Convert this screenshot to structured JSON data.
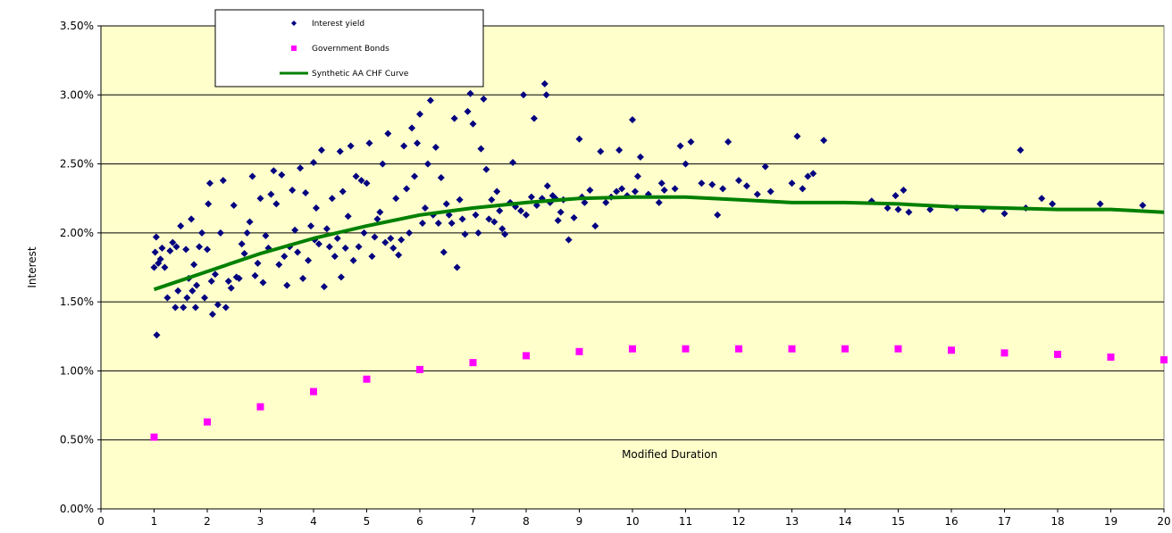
{
  "chart_data": {
    "type": "scatter",
    "xlabel": "Modified Duration",
    "ylabel": "Interest",
    "xlim": [
      0,
      20
    ],
    "ylim": [
      0,
      0.035
    ],
    "x_ticks": [
      "0",
      "1",
      "2",
      "3",
      "4",
      "5",
      "6",
      "7",
      "8",
      "9",
      "10",
      "11",
      "12",
      "13",
      "14",
      "15",
      "16",
      "17",
      "18",
      "19",
      "20"
    ],
    "y_ticks": [
      "0.00%",
      "0.50%",
      "1.00%",
      "1.50%",
      "2.00%",
      "2.50%",
      "3.00%",
      "3.50%"
    ],
    "grid": "horizontal",
    "legend_position": "top-left",
    "plot_background": "#FFFFCC",
    "series": [
      {
        "name": "Interest yield",
        "kind": "scatter",
        "marker": "diamond",
        "color": "#000080",
        "points": [
          [
            1.0,
            0.0175
          ],
          [
            1.02,
            0.0186
          ],
          [
            1.04,
            0.0197
          ],
          [
            1.05,
            0.0126
          ],
          [
            1.08,
            0.0178
          ],
          [
            1.12,
            0.0181
          ],
          [
            1.15,
            0.0189
          ],
          [
            1.2,
            0.0175
          ],
          [
            1.25,
            0.0153
          ],
          [
            1.3,
            0.0187
          ],
          [
            1.35,
            0.0193
          ],
          [
            1.4,
            0.0146
          ],
          [
            1.42,
            0.019
          ],
          [
            1.45,
            0.0158
          ],
          [
            1.5,
            0.0205
          ],
          [
            1.55,
            0.0146
          ],
          [
            1.6,
            0.0188
          ],
          [
            1.62,
            0.0153
          ],
          [
            1.65,
            0.0167
          ],
          [
            1.7,
            0.021
          ],
          [
            1.72,
            0.0158
          ],
          [
            1.75,
            0.0177
          ],
          [
            1.78,
            0.0146
          ],
          [
            1.8,
            0.0162
          ],
          [
            1.85,
            0.019
          ],
          [
            1.9,
            0.02
          ],
          [
            1.95,
            0.0153
          ],
          [
            2.0,
            0.0188
          ],
          [
            2.02,
            0.0221
          ],
          [
            2.05,
            0.0236
          ],
          [
            2.08,
            0.0165
          ],
          [
            2.1,
            0.0141
          ],
          [
            2.15,
            0.017
          ],
          [
            2.2,
            0.0148
          ],
          [
            2.25,
            0.02
          ],
          [
            2.3,
            0.0238
          ],
          [
            2.35,
            0.0146
          ],
          [
            2.4,
            0.0165
          ],
          [
            2.45,
            0.016
          ],
          [
            2.5,
            0.022
          ],
          [
            2.55,
            0.0168
          ],
          [
            2.6,
            0.0167
          ],
          [
            2.65,
            0.0192
          ],
          [
            2.7,
            0.0185
          ],
          [
            2.75,
            0.02
          ],
          [
            2.8,
            0.0208
          ],
          [
            2.85,
            0.0241
          ],
          [
            2.9,
            0.0169
          ],
          [
            2.95,
            0.0178
          ],
          [
            3.0,
            0.0225
          ],
          [
            3.05,
            0.0164
          ],
          [
            3.1,
            0.0198
          ],
          [
            3.15,
            0.0189
          ],
          [
            3.2,
            0.0228
          ],
          [
            3.25,
            0.0245
          ],
          [
            3.3,
            0.0221
          ],
          [
            3.35,
            0.0177
          ],
          [
            3.4,
            0.0242
          ],
          [
            3.45,
            0.0183
          ],
          [
            3.5,
            0.0162
          ],
          [
            3.55,
            0.019
          ],
          [
            3.6,
            0.0231
          ],
          [
            3.65,
            0.0202
          ],
          [
            3.7,
            0.0186
          ],
          [
            3.75,
            0.0247
          ],
          [
            3.8,
            0.0167
          ],
          [
            3.85,
            0.0229
          ],
          [
            3.9,
            0.018
          ],
          [
            3.95,
            0.0205
          ],
          [
            4.0,
            0.0251
          ],
          [
            4.02,
            0.0195
          ],
          [
            4.05,
            0.0218
          ],
          [
            4.1,
            0.0192
          ],
          [
            4.15,
            0.026
          ],
          [
            4.2,
            0.0161
          ],
          [
            4.25,
            0.0203
          ],
          [
            4.3,
            0.019
          ],
          [
            4.35,
            0.0225
          ],
          [
            4.4,
            0.0183
          ],
          [
            4.45,
            0.0196
          ],
          [
            4.5,
            0.0259
          ],
          [
            4.52,
            0.0168
          ],
          [
            4.55,
            0.023
          ],
          [
            4.6,
            0.0189
          ],
          [
            4.65,
            0.0212
          ],
          [
            4.7,
            0.0263
          ],
          [
            4.75,
            0.018
          ],
          [
            4.8,
            0.0241
          ],
          [
            4.85,
            0.019
          ],
          [
            4.9,
            0.0238
          ],
          [
            4.95,
            0.02
          ],
          [
            5.0,
            0.0236
          ],
          [
            5.05,
            0.0265
          ],
          [
            5.1,
            0.0183
          ],
          [
            5.15,
            0.0197
          ],
          [
            5.2,
            0.021
          ],
          [
            5.25,
            0.0215
          ],
          [
            5.3,
            0.025
          ],
          [
            5.35,
            0.0193
          ],
          [
            5.4,
            0.0272
          ],
          [
            5.45,
            0.0196
          ],
          [
            5.5,
            0.0189
          ],
          [
            5.55,
            0.0225
          ],
          [
            5.6,
            0.0184
          ],
          [
            5.65,
            0.0195
          ],
          [
            5.7,
            0.0263
          ],
          [
            5.75,
            0.0232
          ],
          [
            5.8,
            0.02
          ],
          [
            5.85,
            0.0276
          ],
          [
            5.9,
            0.0241
          ],
          [
            5.95,
            0.0265
          ],
          [
            6.0,
            0.0286
          ],
          [
            6.05,
            0.0207
          ],
          [
            6.1,
            0.0218
          ],
          [
            6.15,
            0.025
          ],
          [
            6.2,
            0.0296
          ],
          [
            6.25,
            0.0213
          ],
          [
            6.3,
            0.0262
          ],
          [
            6.35,
            0.0207
          ],
          [
            6.4,
            0.024
          ],
          [
            6.45,
            0.0186
          ],
          [
            6.5,
            0.0221
          ],
          [
            6.55,
            0.0213
          ],
          [
            6.6,
            0.0207
          ],
          [
            6.65,
            0.0283
          ],
          [
            6.7,
            0.0175
          ],
          [
            6.75,
            0.0224
          ],
          [
            6.8,
            0.021
          ],
          [
            6.85,
            0.0199
          ],
          [
            6.9,
            0.0288
          ],
          [
            6.95,
            0.0301
          ],
          [
            7.0,
            0.0279
          ],
          [
            7.05,
            0.0213
          ],
          [
            7.1,
            0.02
          ],
          [
            7.15,
            0.0261
          ],
          [
            7.2,
            0.0297
          ],
          [
            7.25,
            0.0246
          ],
          [
            7.3,
            0.021
          ],
          [
            7.35,
            0.0224
          ],
          [
            7.4,
            0.0208
          ],
          [
            7.45,
            0.023
          ],
          [
            7.5,
            0.0216
          ],
          [
            7.55,
            0.0203
          ],
          [
            7.6,
            0.0199
          ],
          [
            7.7,
            0.0222
          ],
          [
            7.75,
            0.0251
          ],
          [
            7.8,
            0.0219
          ],
          [
            7.9,
            0.0216
          ],
          [
            7.95,
            0.03
          ],
          [
            8.0,
            0.0213
          ],
          [
            8.1,
            0.0226
          ],
          [
            8.15,
            0.0283
          ],
          [
            8.2,
            0.022
          ],
          [
            8.3,
            0.0225
          ],
          [
            8.35,
            0.0308
          ],
          [
            8.38,
            0.03
          ],
          [
            8.4,
            0.0234
          ],
          [
            8.45,
            0.0222
          ],
          [
            8.5,
            0.0227
          ],
          [
            8.55,
            0.0225
          ],
          [
            8.6,
            0.0209
          ],
          [
            8.65,
            0.0215
          ],
          [
            8.7,
            0.0224
          ],
          [
            8.8,
            0.0195
          ],
          [
            8.9,
            0.0211
          ],
          [
            9.0,
            0.0268
          ],
          [
            9.05,
            0.0226
          ],
          [
            9.1,
            0.0222
          ],
          [
            9.2,
            0.0231
          ],
          [
            9.3,
            0.0205
          ],
          [
            9.4,
            0.0259
          ],
          [
            9.5,
            0.0222
          ],
          [
            9.6,
            0.0226
          ],
          [
            9.7,
            0.023
          ],
          [
            9.75,
            0.026
          ],
          [
            9.8,
            0.0232
          ],
          [
            9.9,
            0.0227
          ],
          [
            10.0,
            0.0282
          ],
          [
            10.05,
            0.023
          ],
          [
            10.1,
            0.0241
          ],
          [
            10.15,
            0.0255
          ],
          [
            10.3,
            0.0228
          ],
          [
            10.5,
            0.0222
          ],
          [
            10.55,
            0.0236
          ],
          [
            10.6,
            0.0231
          ],
          [
            10.8,
            0.0232
          ],
          [
            10.9,
            0.0263
          ],
          [
            11.0,
            0.025
          ],
          [
            11.1,
            0.0266
          ],
          [
            11.3,
            0.0236
          ],
          [
            11.5,
            0.0235
          ],
          [
            11.6,
            0.0213
          ],
          [
            11.7,
            0.0232
          ],
          [
            11.8,
            0.0266
          ],
          [
            12.0,
            0.0238
          ],
          [
            12.15,
            0.0234
          ],
          [
            12.35,
            0.0228
          ],
          [
            12.5,
            0.0248
          ],
          [
            12.6,
            0.023
          ],
          [
            13.0,
            0.0236
          ],
          [
            13.1,
            0.027
          ],
          [
            13.2,
            0.0232
          ],
          [
            13.3,
            0.0241
          ],
          [
            13.4,
            0.0243
          ],
          [
            13.6,
            0.0267
          ],
          [
            14.5,
            0.0223
          ],
          [
            14.8,
            0.0218
          ],
          [
            14.95,
            0.0227
          ],
          [
            15.0,
            0.0217
          ],
          [
            15.1,
            0.0231
          ],
          [
            15.2,
            0.0215
          ],
          [
            15.6,
            0.0217
          ],
          [
            16.1,
            0.0218
          ],
          [
            16.6,
            0.0217
          ],
          [
            17.0,
            0.0214
          ],
          [
            17.3,
            0.026
          ],
          [
            17.4,
            0.0218
          ],
          [
            17.7,
            0.0225
          ],
          [
            17.9,
            0.0221
          ],
          [
            18.8,
            0.0221
          ],
          [
            19.6,
            0.022
          ]
        ]
      },
      {
        "name": "Government Bonds",
        "kind": "scatter",
        "marker": "square",
        "color": "#FF00FF",
        "points": [
          [
            1,
            0.0052
          ],
          [
            2,
            0.0063
          ],
          [
            3,
            0.0074
          ],
          [
            4,
            0.0085
          ],
          [
            5,
            0.0094
          ],
          [
            6,
            0.0101
          ],
          [
            7,
            0.0106
          ],
          [
            8,
            0.0111
          ],
          [
            9,
            0.0114
          ],
          [
            10,
            0.0116
          ],
          [
            11,
            0.0116
          ],
          [
            12,
            0.0116
          ],
          [
            13,
            0.0116
          ],
          [
            14,
            0.0116
          ],
          [
            15,
            0.0116
          ],
          [
            16,
            0.0115
          ],
          [
            17,
            0.0113
          ],
          [
            18,
            0.0112
          ],
          [
            19,
            0.011
          ],
          [
            20,
            0.0108
          ]
        ]
      },
      {
        "name": "Synthetic AA CHF Curve",
        "kind": "line",
        "color": "#008000",
        "points": [
          [
            1,
            0.0159
          ],
          [
            2,
            0.0172
          ],
          [
            3,
            0.0185
          ],
          [
            4,
            0.0196
          ],
          [
            5,
            0.0205
          ],
          [
            6,
            0.0213
          ],
          [
            7,
            0.0218
          ],
          [
            8,
            0.0222
          ],
          [
            9,
            0.0225
          ],
          [
            10,
            0.0226
          ],
          [
            11,
            0.0226
          ],
          [
            12,
            0.0224
          ],
          [
            13,
            0.0222
          ],
          [
            14,
            0.0222
          ],
          [
            15,
            0.0221
          ],
          [
            16,
            0.0219
          ],
          [
            17,
            0.0218
          ],
          [
            18,
            0.0217
          ],
          [
            19,
            0.0217
          ],
          [
            20,
            0.0215
          ]
        ]
      }
    ]
  }
}
